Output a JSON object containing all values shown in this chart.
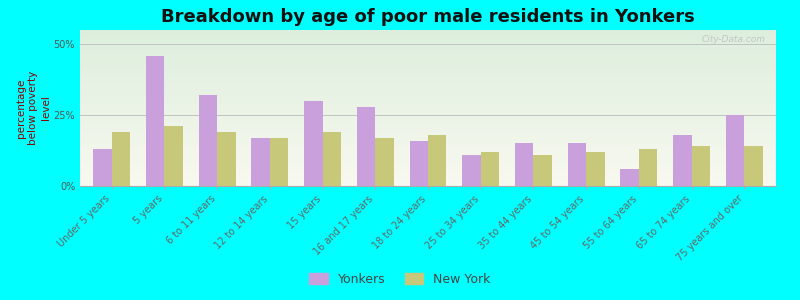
{
  "title": "Breakdown by age of poor male residents in Yonkers",
  "ylabel": "percentage\nbelow poverty\nlevel",
  "categories": [
    "Under 5 years",
    "5 years",
    "6 to 11 years",
    "12 to 14 years",
    "15 years",
    "16 and 17 years",
    "18 to 24 years",
    "25 to 34 years",
    "35 to 44 years",
    "45 to 54 years",
    "55 to 64 years",
    "65 to 74 years",
    "75 years and over"
  ],
  "yonkers_values": [
    13,
    46,
    32,
    17,
    30,
    28,
    16,
    11,
    15,
    15,
    6,
    18,
    25
  ],
  "newyork_values": [
    19,
    21,
    19,
    17,
    19,
    17,
    18,
    12,
    11,
    12,
    13,
    14,
    14
  ],
  "yonkers_color": "#c9a0dc",
  "newyork_color": "#c8c87a",
  "background_color": "#00ffff",
  "ylim": [
    0,
    55
  ],
  "yticks": [
    0,
    25,
    50
  ],
  "ytick_labels": [
    "0%",
    "25%",
    "50%"
  ],
  "bar_width": 0.35,
  "title_fontsize": 13,
  "axis_label_fontsize": 7.5,
  "tick_fontsize": 7,
  "legend_labels": [
    "Yonkers",
    "New York"
  ],
  "watermark": "City-Data.com",
  "grad_top": "#f8f8ef",
  "grad_bot": "#ddeedd"
}
